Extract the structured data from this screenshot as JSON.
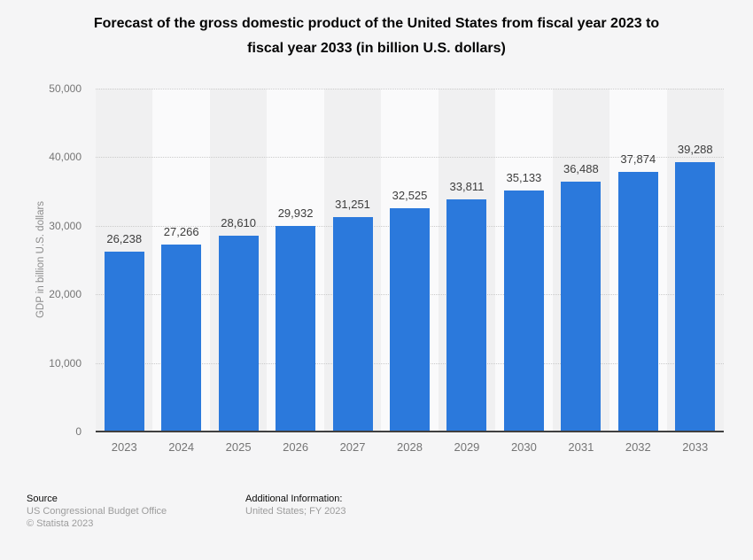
{
  "title": {
    "line1": "Forecast of the gross domestic product of the United States from fiscal year 2023 to",
    "line2": "fiscal year 2033 (in billion U.S. dollars)"
  },
  "chart_data": {
    "type": "bar",
    "title": "Forecast of the gross domestic product of the United States from fiscal year 2023 to fiscal year 2033 (in billion U.S. dollars)",
    "categories": [
      "2023",
      "2024",
      "2025",
      "2026",
      "2027",
      "2028",
      "2029",
      "2030",
      "2031",
      "2032",
      "2033"
    ],
    "values": [
      26238,
      27266,
      28610,
      29932,
      31251,
      32525,
      33811,
      35133,
      36488,
      37874,
      39288
    ],
    "value_labels": [
      "26,238",
      "27,266",
      "28,610",
      "29,932",
      "31,251",
      "32,525",
      "33,811",
      "35,133",
      "36,488",
      "37,874",
      "39,288"
    ],
    "xlabel": "",
    "ylabel": "GDP in billion U.S. dollars",
    "ylim": [
      0,
      50000
    ],
    "yticks": [
      0,
      10000,
      20000,
      30000,
      40000,
      50000
    ],
    "ytick_labels": [
      "0",
      "10,000",
      "20,000",
      "30,000",
      "40,000",
      "50,000"
    ],
    "grid": "horizontal-dotted",
    "legend": "none",
    "bar_color": "#2b79dc",
    "band_color_dark": "#f0f0f1",
    "band_color_light": "#fafafb",
    "gridline_color": "#cbcbcb",
    "baseline_color": "#404040"
  },
  "footer": {
    "source_label": "Source",
    "source_value": "US Congressional Budget Office",
    "copyright": "© Statista 2023",
    "additional_label": "Additional Information:",
    "additional_value": "United States; FY 2023"
  }
}
